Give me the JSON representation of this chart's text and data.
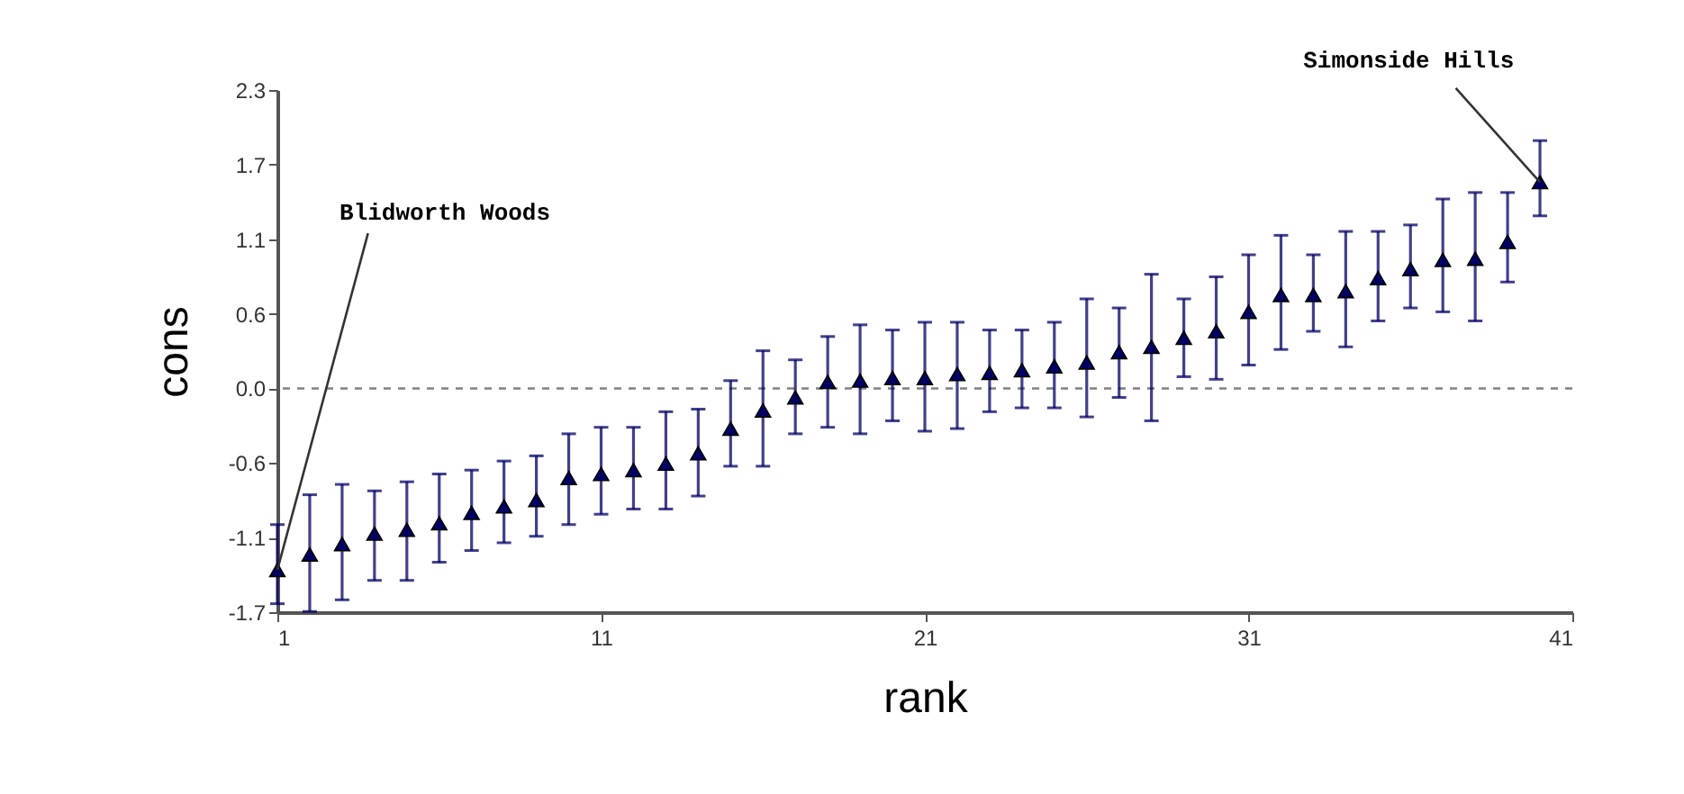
{
  "chart_data": {
    "type": "scatter",
    "xlabel": "rank",
    "ylabel": "cons",
    "x": [
      1,
      2,
      3,
      4,
      5,
      6,
      7,
      8,
      9,
      10,
      11,
      12,
      13,
      14,
      15,
      16,
      17,
      18,
      19,
      20,
      21,
      22,
      23,
      24,
      25,
      26,
      27,
      28,
      29,
      30,
      31,
      32,
      33,
      34,
      35,
      36,
      37,
      38,
      39,
      40
    ],
    "series": [
      {
        "color": "#000066",
        "values": [
          -1.4,
          -1.28,
          -1.2,
          -1.12,
          -1.09,
          -1.04,
          -0.96,
          -0.91,
          -0.86,
          -0.69,
          -0.66,
          -0.63,
          -0.58,
          -0.5,
          -0.31,
          -0.17,
          -0.07,
          0.05,
          0.06,
          0.08,
          0.08,
          0.11,
          0.12,
          0.14,
          0.17,
          0.2,
          0.28,
          0.32,
          0.39,
          0.44,
          0.59,
          0.72,
          0.72,
          0.75,
          0.85,
          0.92,
          0.99,
          1.0,
          1.13,
          1.59
        ],
        "errors": [
          [
            -1.66,
            -1.05
          ],
          [
            -1.72,
            -0.82
          ],
          [
            -1.63,
            -0.74
          ],
          [
            -1.48,
            -0.79
          ],
          [
            -1.48,
            -0.72
          ],
          [
            -1.34,
            -0.66
          ],
          [
            -1.25,
            -0.63
          ],
          [
            -1.19,
            -0.56
          ],
          [
            -1.14,
            -0.52
          ],
          [
            -1.05,
            -0.35
          ],
          [
            -0.97,
            -0.3
          ],
          [
            -0.93,
            -0.3
          ],
          [
            -0.93,
            -0.18
          ],
          [
            -0.83,
            -0.16
          ],
          [
            -0.6,
            0.06
          ],
          [
            -0.6,
            0.29
          ],
          [
            -0.35,
            0.22
          ],
          [
            -0.3,
            0.4
          ],
          [
            -0.35,
            0.49
          ],
          [
            -0.25,
            0.45
          ],
          [
            -0.33,
            0.51
          ],
          [
            -0.31,
            0.51
          ],
          [
            -0.18,
            0.45
          ],
          [
            -0.15,
            0.45
          ],
          [
            -0.15,
            0.51
          ],
          [
            -0.22,
            0.69
          ],
          [
            -0.07,
            0.62
          ],
          [
            -0.25,
            0.88
          ],
          [
            0.09,
            0.69
          ],
          [
            0.07,
            0.86
          ],
          [
            0.18,
            1.03
          ],
          [
            0.3,
            1.18
          ],
          [
            0.44,
            1.03
          ],
          [
            0.32,
            1.21
          ],
          [
            0.52,
            1.21
          ],
          [
            0.62,
            1.26
          ],
          [
            0.59,
            1.46
          ],
          [
            0.52,
            1.51
          ],
          [
            0.82,
            1.51
          ],
          [
            1.33,
            1.91
          ]
        ]
      }
    ],
    "marker": "triangle",
    "xlim": [
      1,
      41
    ],
    "xticks": [
      1,
      11,
      21,
      31,
      41
    ],
    "ylim": [
      -1.725,
      2.3
    ],
    "yticks": [
      {
        "value": -1.725,
        "label": "-1.7"
      },
      {
        "value": -1.15,
        "label": "-1.1"
      },
      {
        "value": -0.575,
        "label": "-0.6"
      },
      {
        "value": 0,
        "label": "0.0"
      },
      {
        "value": 0.575,
        "label": "0.6"
      },
      {
        "value": 1.15,
        "label": "1.1"
      },
      {
        "value": 1.725,
        "label": "1.7"
      },
      {
        "value": 2.3,
        "label": "2.3"
      }
    ],
    "ref_lines": [
      {
        "axis": "y",
        "value": 0,
        "color": "#808080",
        "line_style": "dashed"
      }
    ],
    "annotations": [
      {
        "text": "Blidworth Woods",
        "x": 1,
        "y": -1.4
      },
      {
        "text": "Simonside Hills",
        "x": 40,
        "y": 1.59
      }
    ],
    "grid": false
  }
}
